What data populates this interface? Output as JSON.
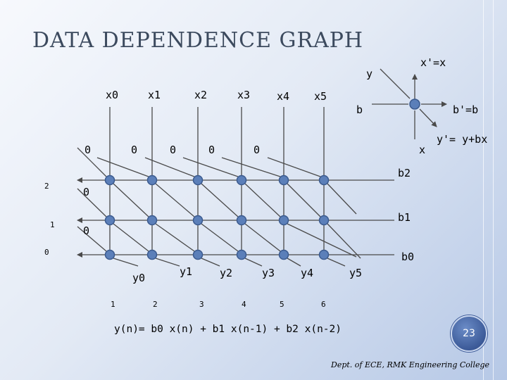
{
  "slide": {
    "title": "DATA DEPENDENCE GRAPH",
    "formula": "y(n)= b0 x(n) + b1 x(n-1) + b2 x(n-2)",
    "page_number": "23",
    "footer": "Dept. of ECE, RMK Engineering College"
  },
  "graph": {
    "x_labels": [
      "x0",
      "x1",
      "x2",
      "x3",
      "x4",
      "x5"
    ],
    "initial_zeros": [
      "0",
      "0",
      "0",
      "0",
      "0"
    ],
    "row_zeros": [
      "0",
      "0"
    ],
    "row_labels": [
      "2",
      "1",
      "0"
    ],
    "coef_labels": [
      "b2",
      "b1",
      "b0"
    ],
    "y_labels": [
      "y0",
      "y1",
      "y2",
      "y3",
      "y4",
      "y5"
    ],
    "col_numbers": [
      "1",
      "2",
      "3",
      "4",
      "5",
      "6"
    ]
  },
  "cell_legend": {
    "y": "y",
    "x_out": "x'=x",
    "b": "b",
    "b_out": "b'=b",
    "x": "x",
    "y_out": "y'= y+bx"
  },
  "colors": {
    "node_fill": "#5b7fb9",
    "node_stroke": "#3b5a8e",
    "edge": "#4a4a4a"
  }
}
